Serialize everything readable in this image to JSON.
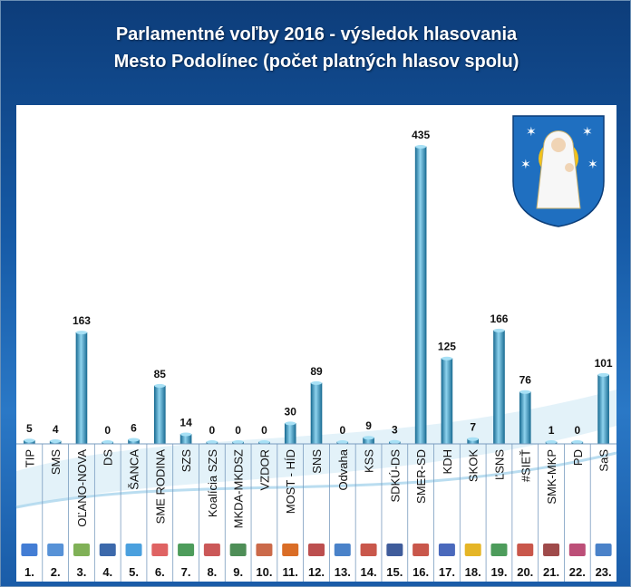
{
  "title": {
    "line1": "Parlamentné voľby 2016 - výsledok hlasovania",
    "line2": "Mesto Podolínec (počet platných hlasov spolu)"
  },
  "chart_data": {
    "type": "bar",
    "title": "Parlamentné voľby 2016 - výsledok hlasovania Mesto Podolínec (počet platných hlasov spolu)",
    "categories": [
      "TIP",
      "SMS",
      "OĽANO-NOVA",
      "DS",
      "ŠANCA",
      "SME RODINA",
      "SZS",
      "Koalícia SZS",
      "MKDA-MKDSZ",
      "VZDOR",
      "MOST - HÍD",
      "SNS",
      "Odvaha",
      "KSS",
      "SDKÚ-DS",
      "SMER-SD",
      "KDH",
      "SKOK",
      "ĽSNS",
      "#SIEŤ",
      "SMK-MKP",
      "PD",
      "SaS"
    ],
    "numbers": [
      "1.",
      "2.",
      "3.",
      "4.",
      "5.",
      "6.",
      "7.",
      "8.",
      "9.",
      "10.",
      "11.",
      "12.",
      "13.",
      "14.",
      "15.",
      "16.",
      "17.",
      "18.",
      "19.",
      "20.",
      "21.",
      "22.",
      "23."
    ],
    "values": [
      5,
      4,
      163,
      0,
      6,
      85,
      14,
      0,
      0,
      0,
      30,
      89,
      0,
      9,
      3,
      435,
      125,
      7,
      166,
      76,
      1,
      0,
      101
    ],
    "ylim": [
      0,
      450
    ],
    "grid": false,
    "colors": {
      "bar": "#3a9fc8",
      "bar_dark": "#1d6f96",
      "bar_light": "#8fd3ee",
      "frame": "#1a5ca8"
    }
  }
}
